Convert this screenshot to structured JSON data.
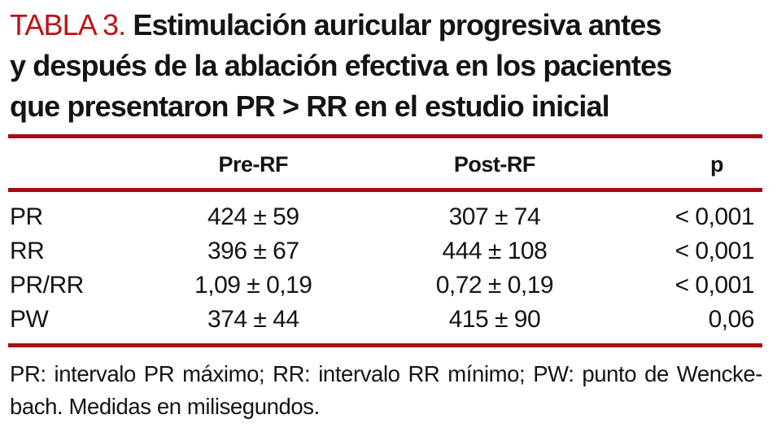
{
  "title": {
    "label": "TABLA 3.",
    "lines": [
      "Estimulación auricular progresiva antes",
      "y después de la ablación efectiva en los pacientes",
      "que presentaron PR > RR en el estudio inicial"
    ]
  },
  "table": {
    "columns": [
      "",
      "Pre-RF",
      "Post-RF",
      "p"
    ],
    "rows": [
      {
        "label": "PR",
        "pre_rf": "424 ± 59",
        "post_rf": "307 ± 74",
        "p": "< 0,001"
      },
      {
        "label": "RR",
        "pre_rf": "396 ± 67",
        "post_rf": "444 ± 108",
        "p": "< 0,001"
      },
      {
        "label": "PR/RR",
        "pre_rf": "1,09 ± 0,19",
        "post_rf": "0,72 ± 0,19",
        "p": "< 0,001"
      },
      {
        "label": "PW",
        "pre_rf": "374 ± 44",
        "post_rf": "415 ± 90",
        "p": "0,06"
      }
    ]
  },
  "footnote": {
    "lines": [
      "PR: intervalo PR máximo; RR: intervalo RR mínimo; PW: punto de Wencke-",
      "bach. Medidas en milisegundos."
    ]
  },
  "colors": {
    "title_red": "#bd1218",
    "rule_red": "#a80a16",
    "text": "#141414"
  }
}
